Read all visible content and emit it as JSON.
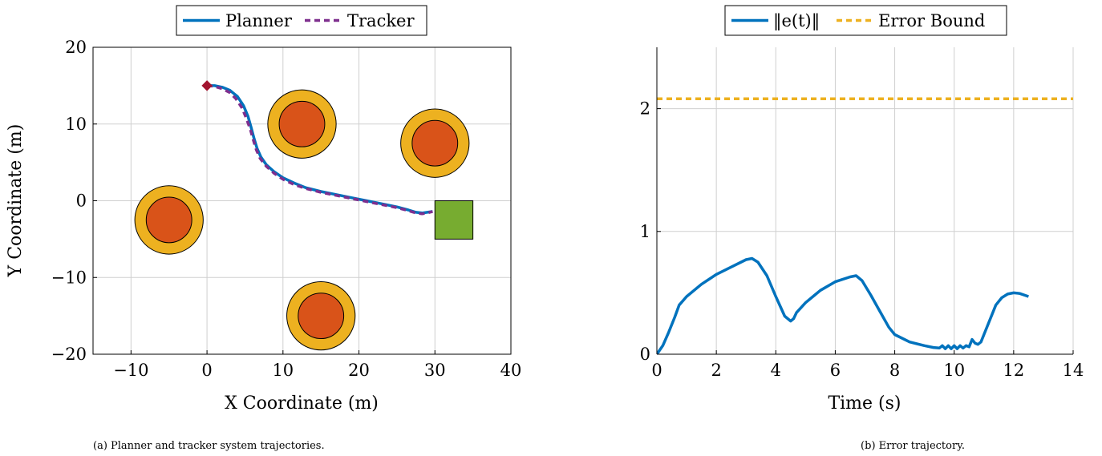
{
  "chart_data": [
    {
      "type": "line",
      "xlabel": "X Coordinate (m)",
      "ylabel": "Y Coordinate (m)",
      "xlim": [
        -15,
        40
      ],
      "ylim": [
        -20,
        20
      ],
      "xticks": [
        -10,
        0,
        10,
        20,
        30,
        40
      ],
      "xtick_labels": [
        "−10",
        "0",
        "10",
        "20",
        "30",
        "40"
      ],
      "yticks": [
        -20,
        -10,
        0,
        10,
        20
      ],
      "ytick_labels": [
        "−20",
        "−10",
        "0",
        "10",
        "20"
      ],
      "grid": true,
      "legend_position": "top-center",
      "series": [
        {
          "name": "Planner",
          "color": "#0072BD",
          "style": "solid",
          "x": [
            0,
            1,
            2,
            3,
            4,
            4.8,
            5.4,
            5.8,
            6.2,
            6.6,
            7.1,
            7.8,
            8.8,
            10,
            11.5,
            13,
            15,
            17,
            19,
            21,
            23,
            25,
            26.5,
            27.5,
            28.3,
            29,
            29.7
          ],
          "y": [
            15,
            15,
            14.8,
            14.4,
            13.6,
            12.4,
            11,
            9.6,
            8.1,
            6.8,
            5.7,
            4.7,
            3.8,
            3,
            2.3,
            1.7,
            1.2,
            0.8,
            0.4,
            0,
            -0.4,
            -0.8,
            -1.2,
            -1.5,
            -1.6,
            -1.5,
            -1.4
          ]
        },
        {
          "name": "Tracker",
          "color": "#7E2F8E",
          "style": "dashed",
          "x": [
            0,
            1,
            2,
            3,
            3.8,
            4.6,
            5.2,
            5.7,
            6.1,
            6.5,
            7,
            7.8,
            8.8,
            10,
            11.5,
            13,
            15,
            17,
            19,
            21,
            23,
            25,
            26.5,
            27.5,
            28.3,
            29,
            29.7
          ],
          "y": [
            15,
            14.9,
            14.6,
            14.1,
            13.3,
            12.1,
            10.7,
            9.3,
            7.9,
            6.6,
            5.5,
            4.5,
            3.6,
            2.8,
            2.1,
            1.6,
            1.1,
            0.7,
            0.3,
            -0.1,
            -0.5,
            -0.9,
            -1.3,
            -1.6,
            -1.7,
            -1.6,
            -1.4
          ]
        }
      ],
      "start_marker": {
        "x": 0,
        "y": 15,
        "color": "#A2142F"
      },
      "obstacles": [
        {
          "x": 12.5,
          "y": 10,
          "outer_r": 4.5,
          "inner_r": 3,
          "outer_color": "#EDB120",
          "inner_color": "#D95319"
        },
        {
          "x": 30,
          "y": 7.5,
          "outer_r": 4.5,
          "inner_r": 3,
          "outer_color": "#EDB120",
          "inner_color": "#D95319"
        },
        {
          "x": -5,
          "y": -2.5,
          "outer_r": 4.5,
          "inner_r": 3,
          "outer_color": "#EDB120",
          "inner_color": "#D95319"
        },
        {
          "x": 15,
          "y": -15,
          "outer_r": 4.5,
          "inner_r": 3,
          "outer_color": "#EDB120",
          "inner_color": "#D95319"
        }
      ],
      "goal_region": {
        "x0": 30,
        "y0": -5,
        "x1": 35,
        "y1": 0,
        "color": "#77AC30"
      },
      "caption": "(a) Planner and tracker system trajectories."
    },
    {
      "type": "line",
      "xlabel": "Time (s)",
      "ylabel": "",
      "xlim": [
        0,
        14
      ],
      "ylim": [
        0,
        2.5
      ],
      "xticks": [
        0,
        2,
        4,
        6,
        8,
        10,
        12,
        14
      ],
      "xtick_labels": [
        "0",
        "2",
        "4",
        "6",
        "8",
        "10",
        "12",
        "14"
      ],
      "yticks": [
        0,
        1,
        2
      ],
      "ytick_labels": [
        "0",
        "1",
        "2"
      ],
      "grid": true,
      "legend_position": "top-center",
      "series": [
        {
          "name": "‖e(t)‖",
          "color": "#0072BD",
          "style": "solid",
          "x": [
            0,
            0.2,
            0.4,
            0.6,
            0.75,
            1.0,
            1.5,
            2.0,
            2.5,
            3.0,
            3.2,
            3.4,
            3.7,
            4.0,
            4.3,
            4.5,
            4.6,
            4.7,
            5.0,
            5.5,
            6.0,
            6.5,
            6.7,
            6.9,
            7.2,
            7.5,
            7.8,
            8.0,
            8.5,
            9.0,
            9.3,
            9.5,
            9.6,
            9.7,
            9.8,
            9.9,
            10.0,
            10.1,
            10.2,
            10.3,
            10.4,
            10.5,
            10.6,
            10.7,
            10.8,
            10.9,
            11.0,
            11.2,
            11.4,
            11.6,
            11.8,
            12.0,
            12.2,
            12.5
          ],
          "y": [
            0,
            0.07,
            0.18,
            0.3,
            0.4,
            0.47,
            0.57,
            0.65,
            0.71,
            0.77,
            0.78,
            0.75,
            0.64,
            0.47,
            0.31,
            0.27,
            0.29,
            0.34,
            0.42,
            0.52,
            0.59,
            0.63,
            0.64,
            0.6,
            0.48,
            0.35,
            0.22,
            0.16,
            0.1,
            0.07,
            0.055,
            0.05,
            0.07,
            0.045,
            0.07,
            0.045,
            0.07,
            0.045,
            0.07,
            0.05,
            0.07,
            0.06,
            0.12,
            0.09,
            0.08,
            0.1,
            0.16,
            0.28,
            0.4,
            0.46,
            0.49,
            0.5,
            0.495,
            0.47
          ]
        },
        {
          "name": "Error Bound",
          "color": "#EDB120",
          "style": "dashed",
          "x": [
            0,
            14
          ],
          "y": [
            2.08,
            2.08
          ]
        }
      ],
      "caption": "(b) Error trajectory."
    }
  ]
}
